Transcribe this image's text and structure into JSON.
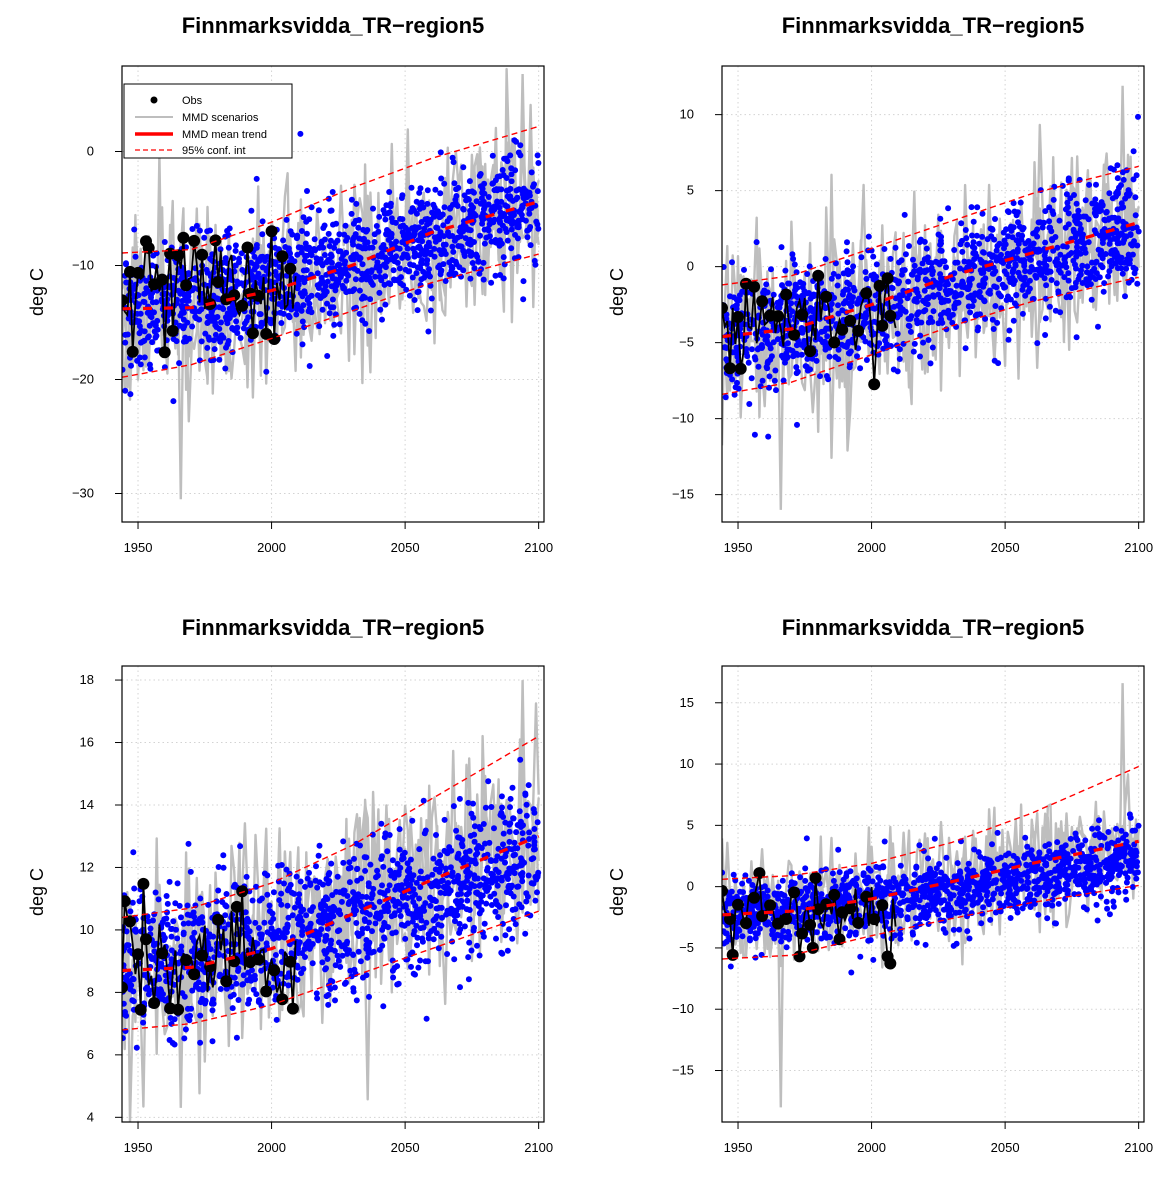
{
  "figure": {
    "colors": {
      "obs": "#000000",
      "scenarios": "#bebebe",
      "trend": "#ff0000",
      "points": "#0000ff",
      "grid": "#d3d3d3"
    },
    "legend": {
      "entries": [
        "Obs",
        "MMD scenarios",
        "MMD mean trend",
        "95% conf. int"
      ],
      "placement": "top-left of first panel"
    }
  },
  "chart_data": [
    {
      "type": "scatter",
      "title": "Finnmarksvidda_TR−region5",
      "xlabel": "",
      "ylabel": "deg C",
      "xlim": [
        1944,
        2102
      ],
      "ylim": [
        -32.5,
        7.5
      ],
      "xticks": [
        "1950",
        "2000",
        "2050",
        "2100"
      ],
      "yticks": [
        "−30",
        "−20",
        "−10",
        "0"
      ],
      "ytick_values": [
        -30,
        -20,
        -10,
        0
      ],
      "grid": true,
      "legend": true,
      "series": [
        {
          "name": "Obs",
          "kind": "observations",
          "x_range": [
            1944,
            2009
          ],
          "mean_trend": -12.0,
          "spread": 2.8
        },
        {
          "name": "MMD scenarios",
          "kind": "scenario-lines",
          "x_range": [
            1944,
            2100
          ],
          "trend_start": -14.0,
          "trend_end": -4.0,
          "curve": 1.6,
          "spread": 3.8,
          "min": -30.5,
          "max": 6.8
        },
        {
          "name": "MMD mean trend",
          "kind": "trend-line",
          "x": [
            1944,
            1970,
            2000,
            2030,
            2060,
            2100
          ],
          "y": [
            -13.8,
            -13.7,
            -12.2,
            -10.0,
            -7.1,
            -4.4
          ]
        },
        {
          "name": "95% conf. int",
          "kind": "confidence-band",
          "x": [
            1944,
            1970,
            2000,
            2030,
            2060,
            2100
          ],
          "upper": [
            -8.9,
            -8.6,
            -6.2,
            -3.2,
            -0.6,
            2.2
          ],
          "lower": [
            -19.8,
            -18.7,
            -16.4,
            -14.0,
            -11.5,
            -9.0
          ]
        },
        {
          "name": "",
          "kind": "downscaled-points",
          "x_range": [
            1944,
            2100
          ],
          "trend_start": -13.8,
          "trend_end": -4.4,
          "spread": 2.6,
          "count": 1300
        }
      ]
    },
    {
      "type": "scatter",
      "title": "Finnmarksvidda_TR−region5",
      "xlabel": "",
      "ylabel": "deg C",
      "xlim": [
        1944,
        2102
      ],
      "ylim": [
        -16.8,
        13.2
      ],
      "xticks": [
        "1950",
        "2000",
        "2050",
        "2100"
      ],
      "yticks": [
        "−15",
        "−10",
        "−5",
        "0",
        "5",
        "10"
      ],
      "ytick_values": [
        -15,
        -10,
        -5,
        0,
        5,
        10
      ],
      "grid": true,
      "legend": false,
      "series": [
        {
          "name": "Obs",
          "kind": "observations",
          "x_range": [
            1944,
            2009
          ],
          "mean_trend": -3.8,
          "spread": 1.9
        },
        {
          "name": "MMD scenarios",
          "kind": "scenario-lines",
          "x_range": [
            1944,
            2100
          ],
          "trend_start": -4.8,
          "trend_end": 2.8,
          "curve": 1.4,
          "spread": 3.0,
          "min": -16.0,
          "max": 11.9
        },
        {
          "name": "MMD mean trend",
          "kind": "trend-line",
          "x": [
            1944,
            1970,
            2000,
            2030,
            2060,
            2100
          ],
          "y": [
            -4.6,
            -4.1,
            -2.5,
            -0.6,
            0.9,
            2.9
          ]
        },
        {
          "name": "95% conf. int",
          "kind": "confidence-band",
          "x": [
            1944,
            1970,
            2000,
            2030,
            2060,
            2100
          ],
          "upper": [
            -1.2,
            -0.6,
            1.2,
            3.0,
            4.8,
            6.6
          ],
          "lower": [
            -8.4,
            -7.6,
            -5.8,
            -3.9,
            -2.3,
            -0.7
          ]
        },
        {
          "name": "",
          "kind": "downscaled-points",
          "x_range": [
            1944,
            2100
          ],
          "trend_start": -4.6,
          "trend_end": 2.9,
          "spread": 1.9,
          "count": 1300
        }
      ]
    },
    {
      "type": "scatter",
      "title": "Finnmarksvidda_TR−region5",
      "xlabel": "",
      "ylabel": "deg C",
      "xlim": [
        1944,
        2102
      ],
      "ylim": [
        3.85,
        18.45
      ],
      "xticks": [
        "1950",
        "2000",
        "2050",
        "2100"
      ],
      "yticks": [
        "4",
        "6",
        "8",
        "10",
        "12",
        "14",
        "16",
        "18"
      ],
      "ytick_values": [
        4,
        6,
        8,
        10,
        12,
        14,
        16,
        18
      ],
      "grid": true,
      "legend": false,
      "series": [
        {
          "name": "Obs",
          "kind": "observations",
          "x_range": [
            1944,
            2009
          ],
          "mean_trend": 9.1,
          "spread": 1.3
        },
        {
          "name": "MMD scenarios",
          "kind": "scenario-lines",
          "x_range": [
            1944,
            2100
          ],
          "trend_start": 8.6,
          "trend_end": 13.0,
          "curve": 1.2,
          "spread": 1.6,
          "min": 4.3,
          "max": 18.0
        },
        {
          "name": "MMD mean trend",
          "kind": "trend-line",
          "x": [
            1944,
            1970,
            2000,
            2030,
            2060,
            2100
          ],
          "y": [
            8.7,
            8.8,
            9.4,
            10.5,
            11.6,
            13.0
          ]
        },
        {
          "name": "95% conf. int",
          "kind": "confidence-band",
          "x": [
            1944,
            1970,
            2000,
            2030,
            2060,
            2100
          ],
          "upper": [
            10.4,
            10.7,
            11.5,
            12.7,
            14.2,
            16.2
          ],
          "lower": [
            6.8,
            7.0,
            7.6,
            8.5,
            9.4,
            10.6
          ]
        },
        {
          "name": "",
          "kind": "downscaled-points",
          "x_range": [
            1944,
            2100
          ],
          "trend_start": 8.7,
          "trend_end": 12.4,
          "spread": 1.15,
          "count": 1300
        }
      ]
    },
    {
      "type": "scatter",
      "title": "Finnmarksvidda_TR−region5",
      "xlabel": "",
      "ylabel": "deg C",
      "xlim": [
        1944,
        2102
      ],
      "ylim": [
        -19.2,
        18.0
      ],
      "xticks": [
        "1950",
        "2000",
        "2050",
        "2100"
      ],
      "yticks": [
        "−15",
        "−10",
        "−5",
        "0",
        "5",
        "10",
        "15"
      ],
      "ytick_values": [
        -15,
        -10,
        -5,
        0,
        5,
        10,
        15
      ],
      "grid": true,
      "legend": false,
      "series": [
        {
          "name": "Obs",
          "kind": "observations",
          "x_range": [
            1944,
            2009
          ],
          "mean_trend": -1.9,
          "spread": 1.8
        },
        {
          "name": "MMD scenarios",
          "kind": "scenario-lines",
          "x_range": [
            1944,
            2100
          ],
          "trend_start": -2.2,
          "trend_end": 3.5,
          "curve": 1.5,
          "spread": 2.2,
          "min": -18.0,
          "max": 16.6
        },
        {
          "name": "MMD mean trend",
          "kind": "trend-line",
          "x": [
            1944,
            1970,
            2000,
            2030,
            2060,
            2100
          ],
          "y": [
            -2.3,
            -2.0,
            -1.0,
            0.4,
            1.9,
            3.7
          ]
        },
        {
          "name": "95% conf. int",
          "kind": "confidence-band",
          "x": [
            1944,
            1970,
            2000,
            2030,
            2060,
            2100
          ],
          "upper": [
            0.6,
            0.9,
            1.9,
            3.6,
            6.0,
            9.8
          ],
          "lower": [
            -5.9,
            -5.6,
            -4.0,
            -2.6,
            -1.3,
            0.1
          ]
        },
        {
          "name": "",
          "kind": "downscaled-points",
          "x_range": [
            1944,
            2100
          ],
          "trend_start": -2.3,
          "trend_end": 2.0,
          "spread": 1.5,
          "count": 1300
        }
      ]
    }
  ]
}
